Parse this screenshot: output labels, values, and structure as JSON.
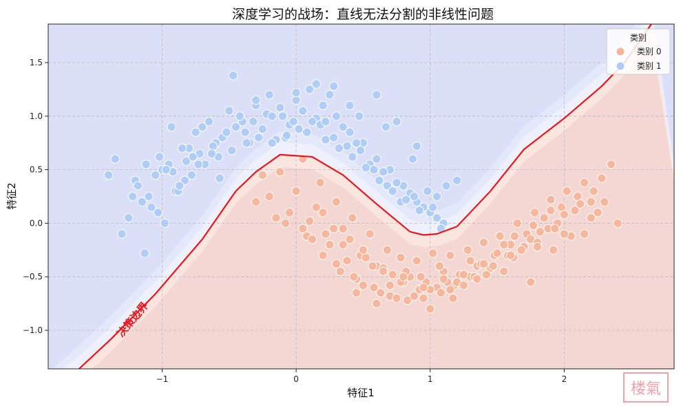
{
  "chart_data": {
    "type": "scatter",
    "title": "深度学习的战场：直线无法分割的非线性问题",
    "xlabel": "特征1",
    "ylabel": "特征2",
    "xlim": [
      -1.85,
      2.82
    ],
    "ylim": [
      -1.36,
      1.86
    ],
    "xticks": [
      -1,
      0,
      1,
      2
    ],
    "yticks": [
      -1.0,
      -0.5,
      0.0,
      0.5,
      1.0,
      1.5
    ],
    "xtick_labels": [
      "−1",
      "0",
      "1",
      "2"
    ],
    "ytick_labels": [
      "−1.0",
      "−0.5",
      "0.0",
      "0.5",
      "1.0",
      "1.5"
    ],
    "grid": true,
    "legend": {
      "title": "类别",
      "position": "top-right",
      "entries": [
        "类别 0",
        "类别 1"
      ]
    },
    "colors": {
      "class0": "#f6b59a",
      "class1": "#aecbf6",
      "region0": "#f4d6d2",
      "region1": "#dbdff7",
      "boundary": "#e8141c"
    },
    "annotation": {
      "text": "决策边界",
      "x": -1.2,
      "y": -0.92
    },
    "decision_boundary": [
      [
        -1.62,
        -1.36
      ],
      [
        -1.38,
        -1.08
      ],
      [
        -1.05,
        -0.66
      ],
      [
        -0.7,
        -0.15
      ],
      [
        -0.45,
        0.3
      ],
      [
        -0.3,
        0.48
      ],
      [
        -0.12,
        0.64
      ],
      [
        0.12,
        0.62
      ],
      [
        0.35,
        0.45
      ],
      [
        0.6,
        0.18
      ],
      [
        0.85,
        -0.08
      ],
      [
        0.95,
        -0.11
      ],
      [
        1.05,
        -0.1
      ],
      [
        1.2,
        -0.03
      ],
      [
        1.45,
        0.3
      ],
      [
        1.7,
        0.69
      ],
      [
        2.0,
        0.98
      ],
      [
        2.28,
        1.28
      ],
      [
        2.45,
        1.5
      ],
      [
        2.65,
        1.86
      ]
    ],
    "series": [
      {
        "name": "类别 0",
        "x": [
          -0.25,
          -0.12,
          0.05,
          0.18,
          0.3,
          0.42,
          0.55,
          0.68,
          0.78,
          0.9,
          1.02,
          1.15,
          1.28,
          1.4,
          1.52,
          1.65,
          1.78,
          1.9,
          2.02,
          2.15,
          2.28,
          2.35,
          -0.2,
          -0.05,
          0.1,
          0.22,
          0.35,
          0.48,
          0.6,
          0.72,
          0.85,
          0.97,
          1.1,
          1.22,
          1.35,
          1.48,
          1.6,
          1.72,
          1.85,
          1.98,
          2.1,
          2.22,
          0.0,
          0.15,
          0.28,
          0.4,
          0.52,
          0.65,
          0.8,
          0.92,
          1.05,
          1.18,
          1.3,
          1.45,
          1.58,
          1.7,
          1.82,
          1.95,
          2.08,
          2.2,
          -0.15,
          0.08,
          0.2,
          0.33,
          0.45,
          0.58,
          0.7,
          0.83,
          0.95,
          1.08,
          1.2,
          1.33,
          1.47,
          1.62,
          1.75,
          1.88,
          2.0,
          2.12,
          2.25,
          0.25,
          0.38,
          0.5,
          0.63,
          0.75,
          0.88,
          1.0,
          1.13,
          1.25,
          1.38,
          1.5,
          1.63,
          1.77,
          1.9,
          2.05,
          -0.3,
          -0.08,
          0.12,
          0.3,
          0.43,
          0.57,
          0.7,
          0.82,
          0.93,
          1.07,
          1.17,
          1.3,
          1.42,
          1.55,
          1.68,
          1.8,
          1.93,
          2.15,
          2.4,
          0.45,
          0.6,
          0.78,
          1.0,
          1.15,
          1.35,
          1.55,
          1.75,
          1.92,
          0.05,
          0.2,
          0.35,
          0.5,
          0.65,
          0.8,
          0.95,
          1.1,
          1.25,
          1.4,
          1.6,
          1.8,
          2.0,
          2.2,
          2.3
        ],
        "y": [
          0.45,
          0.48,
          0.6,
          0.38,
          0.2,
          0.05,
          -0.1,
          -0.25,
          -0.32,
          -0.35,
          -0.28,
          -0.3,
          -0.25,
          -0.18,
          -0.12,
          0.0,
          0.1,
          0.22,
          0.3,
          0.38,
          0.42,
          0.55,
          0.25,
          0.1,
          0.02,
          -0.1,
          -0.2,
          -0.3,
          -0.4,
          -0.48,
          -0.5,
          -0.55,
          -0.45,
          -0.48,
          -0.4,
          -0.3,
          -0.2,
          -0.1,
          0.05,
          0.15,
          0.25,
          0.3,
          0.3,
          0.15,
          -0.05,
          -0.15,
          -0.32,
          -0.42,
          -0.55,
          -0.62,
          -0.6,
          -0.58,
          -0.5,
          -0.42,
          -0.3,
          -0.22,
          -0.08,
          0.0,
          0.12,
          0.2,
          0.05,
          -0.12,
          -0.3,
          -0.45,
          -0.52,
          -0.6,
          -0.68,
          -0.72,
          -0.7,
          -0.65,
          -0.55,
          -0.5,
          -0.4,
          -0.32,
          -0.15,
          -0.05,
          0.08,
          0.18,
          0.1,
          -0.2,
          -0.35,
          -0.58,
          -0.65,
          -0.7,
          -0.68,
          -0.62,
          -0.55,
          -0.48,
          -0.38,
          -0.28,
          -0.12,
          -0.02,
          0.12,
          -0.12,
          0.2,
          0.0,
          -0.15,
          -0.38,
          -0.5,
          -0.4,
          -0.58,
          -0.45,
          -0.5,
          -0.4,
          -0.7,
          -0.35,
          -0.48,
          -0.2,
          -0.25,
          -0.18,
          -0.05,
          -0.1,
          0.0,
          -0.65,
          -0.75,
          -0.55,
          -0.8,
          -0.62,
          -0.52,
          -0.45,
          -0.55,
          -0.25,
          -0.05,
          0.1,
          -0.05,
          -0.25,
          -0.45,
          -0.5,
          -0.6,
          -0.52,
          -0.58,
          -0.38,
          -0.3,
          -0.22,
          -0.1,
          0.05,
          0.2
        ],
        "color": "#f6b59a"
      },
      {
        "name": "类别 1",
        "x": [
          -1.35,
          -1.2,
          -1.1,
          -1.0,
          -0.9,
          -0.8,
          -0.7,
          -0.6,
          -0.5,
          -0.4,
          -0.3,
          -0.2,
          -0.1,
          0.0,
          0.1,
          0.2,
          0.3,
          0.4,
          0.5,
          0.6,
          0.7,
          0.8,
          0.9,
          1.0,
          1.1,
          -1.25,
          -1.15,
          -1.05,
          -0.95,
          -0.85,
          -0.75,
          -0.65,
          -0.55,
          -0.45,
          -0.35,
          -0.25,
          -0.15,
          -0.05,
          0.05,
          0.15,
          0.25,
          0.35,
          0.45,
          0.55,
          0.65,
          0.75,
          0.85,
          0.95,
          1.05,
          -1.3,
          -1.12,
          -1.02,
          -0.92,
          -0.82,
          -0.72,
          -0.62,
          -0.52,
          -0.42,
          -0.32,
          -0.22,
          -0.12,
          -0.02,
          0.08,
          0.18,
          0.28,
          0.38,
          0.48,
          0.58,
          0.68,
          0.78,
          0.88,
          0.98,
          1.08,
          -1.18,
          -1.08,
          -0.98,
          -0.88,
          -0.78,
          -0.68,
          -0.58,
          -0.48,
          -0.38,
          -0.28,
          -0.18,
          -0.08,
          0.02,
          0.12,
          0.22,
          0.32,
          0.42,
          0.52,
          0.62,
          0.72,
          0.82,
          0.92,
          1.02,
          -1.4,
          -1.22,
          -1.03,
          -0.93,
          -0.83,
          -0.73,
          -0.63,
          -0.47,
          -0.3,
          -0.18,
          0.0,
          0.15,
          0.28,
          0.4,
          0.6,
          0.75,
          0.9,
          1.05,
          1.2,
          -1.13,
          -0.97,
          -0.87,
          -0.77,
          -0.57,
          -0.37,
          -0.07,
          0.22,
          0.47,
          0.67,
          0.87,
          1.12
        ],
        "y": [
          0.6,
          0.4,
          0.25,
          0.5,
          0.3,
          0.7,
          0.9,
          0.75,
          1.05,
          0.95,
          1.1,
          1.2,
          1.0,
          1.15,
          1.25,
          1.1,
          1.0,
          0.85,
          0.75,
          0.6,
          0.5,
          0.35,
          0.2,
          0.1,
          0.0,
          0.05,
          0.2,
          0.45,
          0.55,
          0.7,
          0.85,
          0.95,
          0.8,
          0.9,
          0.75,
          0.88,
          0.78,
          0.92,
          1.05,
          0.98,
          1.2,
          0.9,
          0.75,
          0.55,
          0.48,
          0.38,
          0.28,
          0.15,
          0.05,
          -0.1,
          0.55,
          0.62,
          0.48,
          0.58,
          0.65,
          0.72,
          0.85,
          1.0,
          0.95,
          1.02,
          1.08,
          0.95,
          0.85,
          0.92,
          0.8,
          0.72,
          0.68,
          0.5,
          0.35,
          0.2,
          0.25,
          0.3,
          -0.05,
          0.35,
          0.15,
          0.0,
          0.3,
          0.45,
          0.55,
          0.62,
          0.68,
          0.85,
          0.8,
          0.75,
          0.8,
          0.88,
          0.95,
          0.78,
          0.7,
          0.62,
          0.52,
          0.4,
          0.3,
          0.22,
          0.12,
          0.15,
          0.45,
          0.25,
          0.1,
          0.9,
          0.4,
          0.55,
          0.65,
          1.38,
          1.15,
          1.0,
          1.22,
          1.3,
          1.28,
          1.1,
          1.2,
          0.95,
          0.72,
          0.25,
          0.4,
          -0.28,
          0.5,
          0.35,
          0.62,
          0.42,
          0.75,
          0.82,
          0.95,
          1.0,
          0.9,
          0.6,
          0.35
        ],
        "color": "#aecbf6"
      }
    ]
  },
  "watermark_text": "楼氣"
}
